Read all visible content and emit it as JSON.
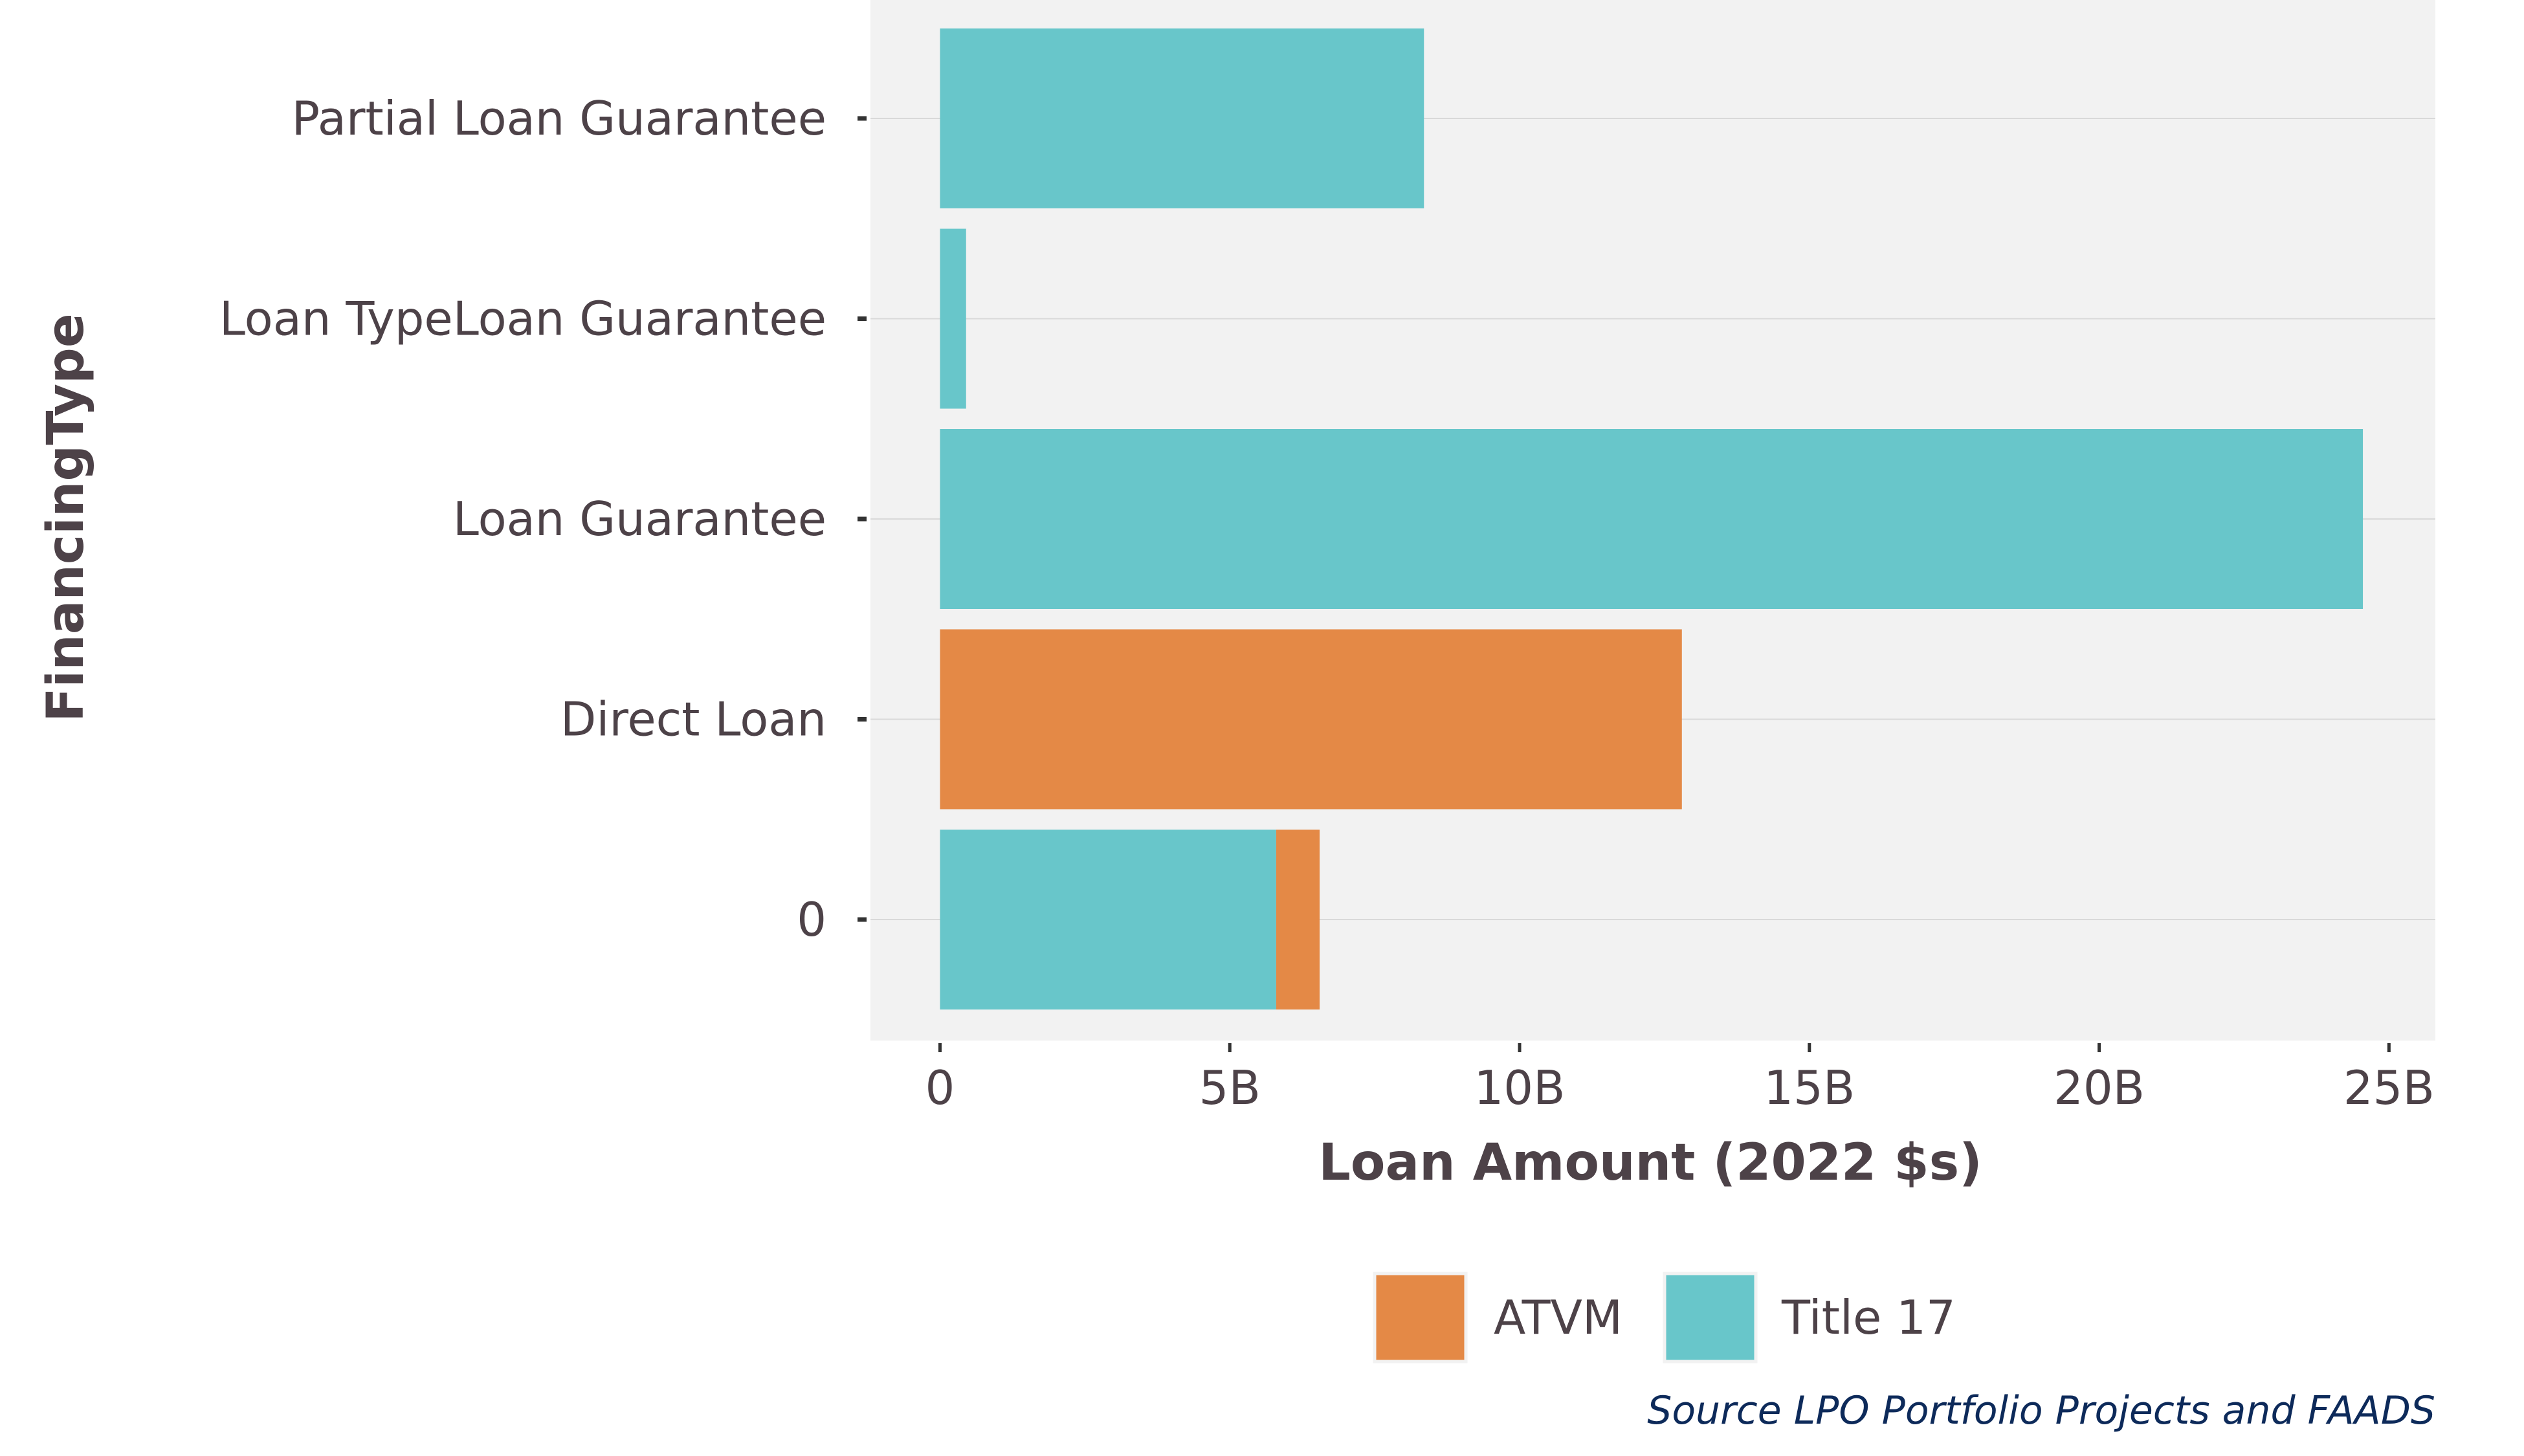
{
  "chart_data": {
    "type": "bar",
    "orientation": "horizontal",
    "stacked": true,
    "categories": [
      "Partial Loan Guarantee",
      "Loan TypeLoan Guarantee",
      "Loan Guarantee",
      "Direct Loan",
      "0"
    ],
    "series": [
      {
        "name": "Title 17",
        "color": "#68c6ca",
        "values": [
          8.35,
          0.45,
          24.55,
          0,
          5.8
        ]
      },
      {
        "name": "ATVM",
        "color": "#e48946",
        "values": [
          0,
          0,
          0,
          12.8,
          0.75
        ]
      }
    ],
    "value_unit": "B",
    "xlim": [
      -1.2,
      25.8
    ],
    "x_ticks": [
      0,
      5,
      10,
      15,
      20,
      25
    ],
    "x_tick_labels": [
      "0",
      "5B",
      "10B",
      "15B",
      "20B",
      "25B"
    ],
    "xlabel": "Loan Amount (2022 $s)",
    "ylabel": "FinancingType",
    "legend": {
      "position": "bottom",
      "entries": [
        {
          "label": "ATVM",
          "color": "#e48946"
        },
        {
          "label": "Title 17",
          "color": "#68c6ca"
        }
      ]
    },
    "caption": "Source LPO Portfolio Projects and FAADS",
    "grid": true,
    "panel_background": "#f2f2f2",
    "grid_color": "#d9d9d9"
  }
}
